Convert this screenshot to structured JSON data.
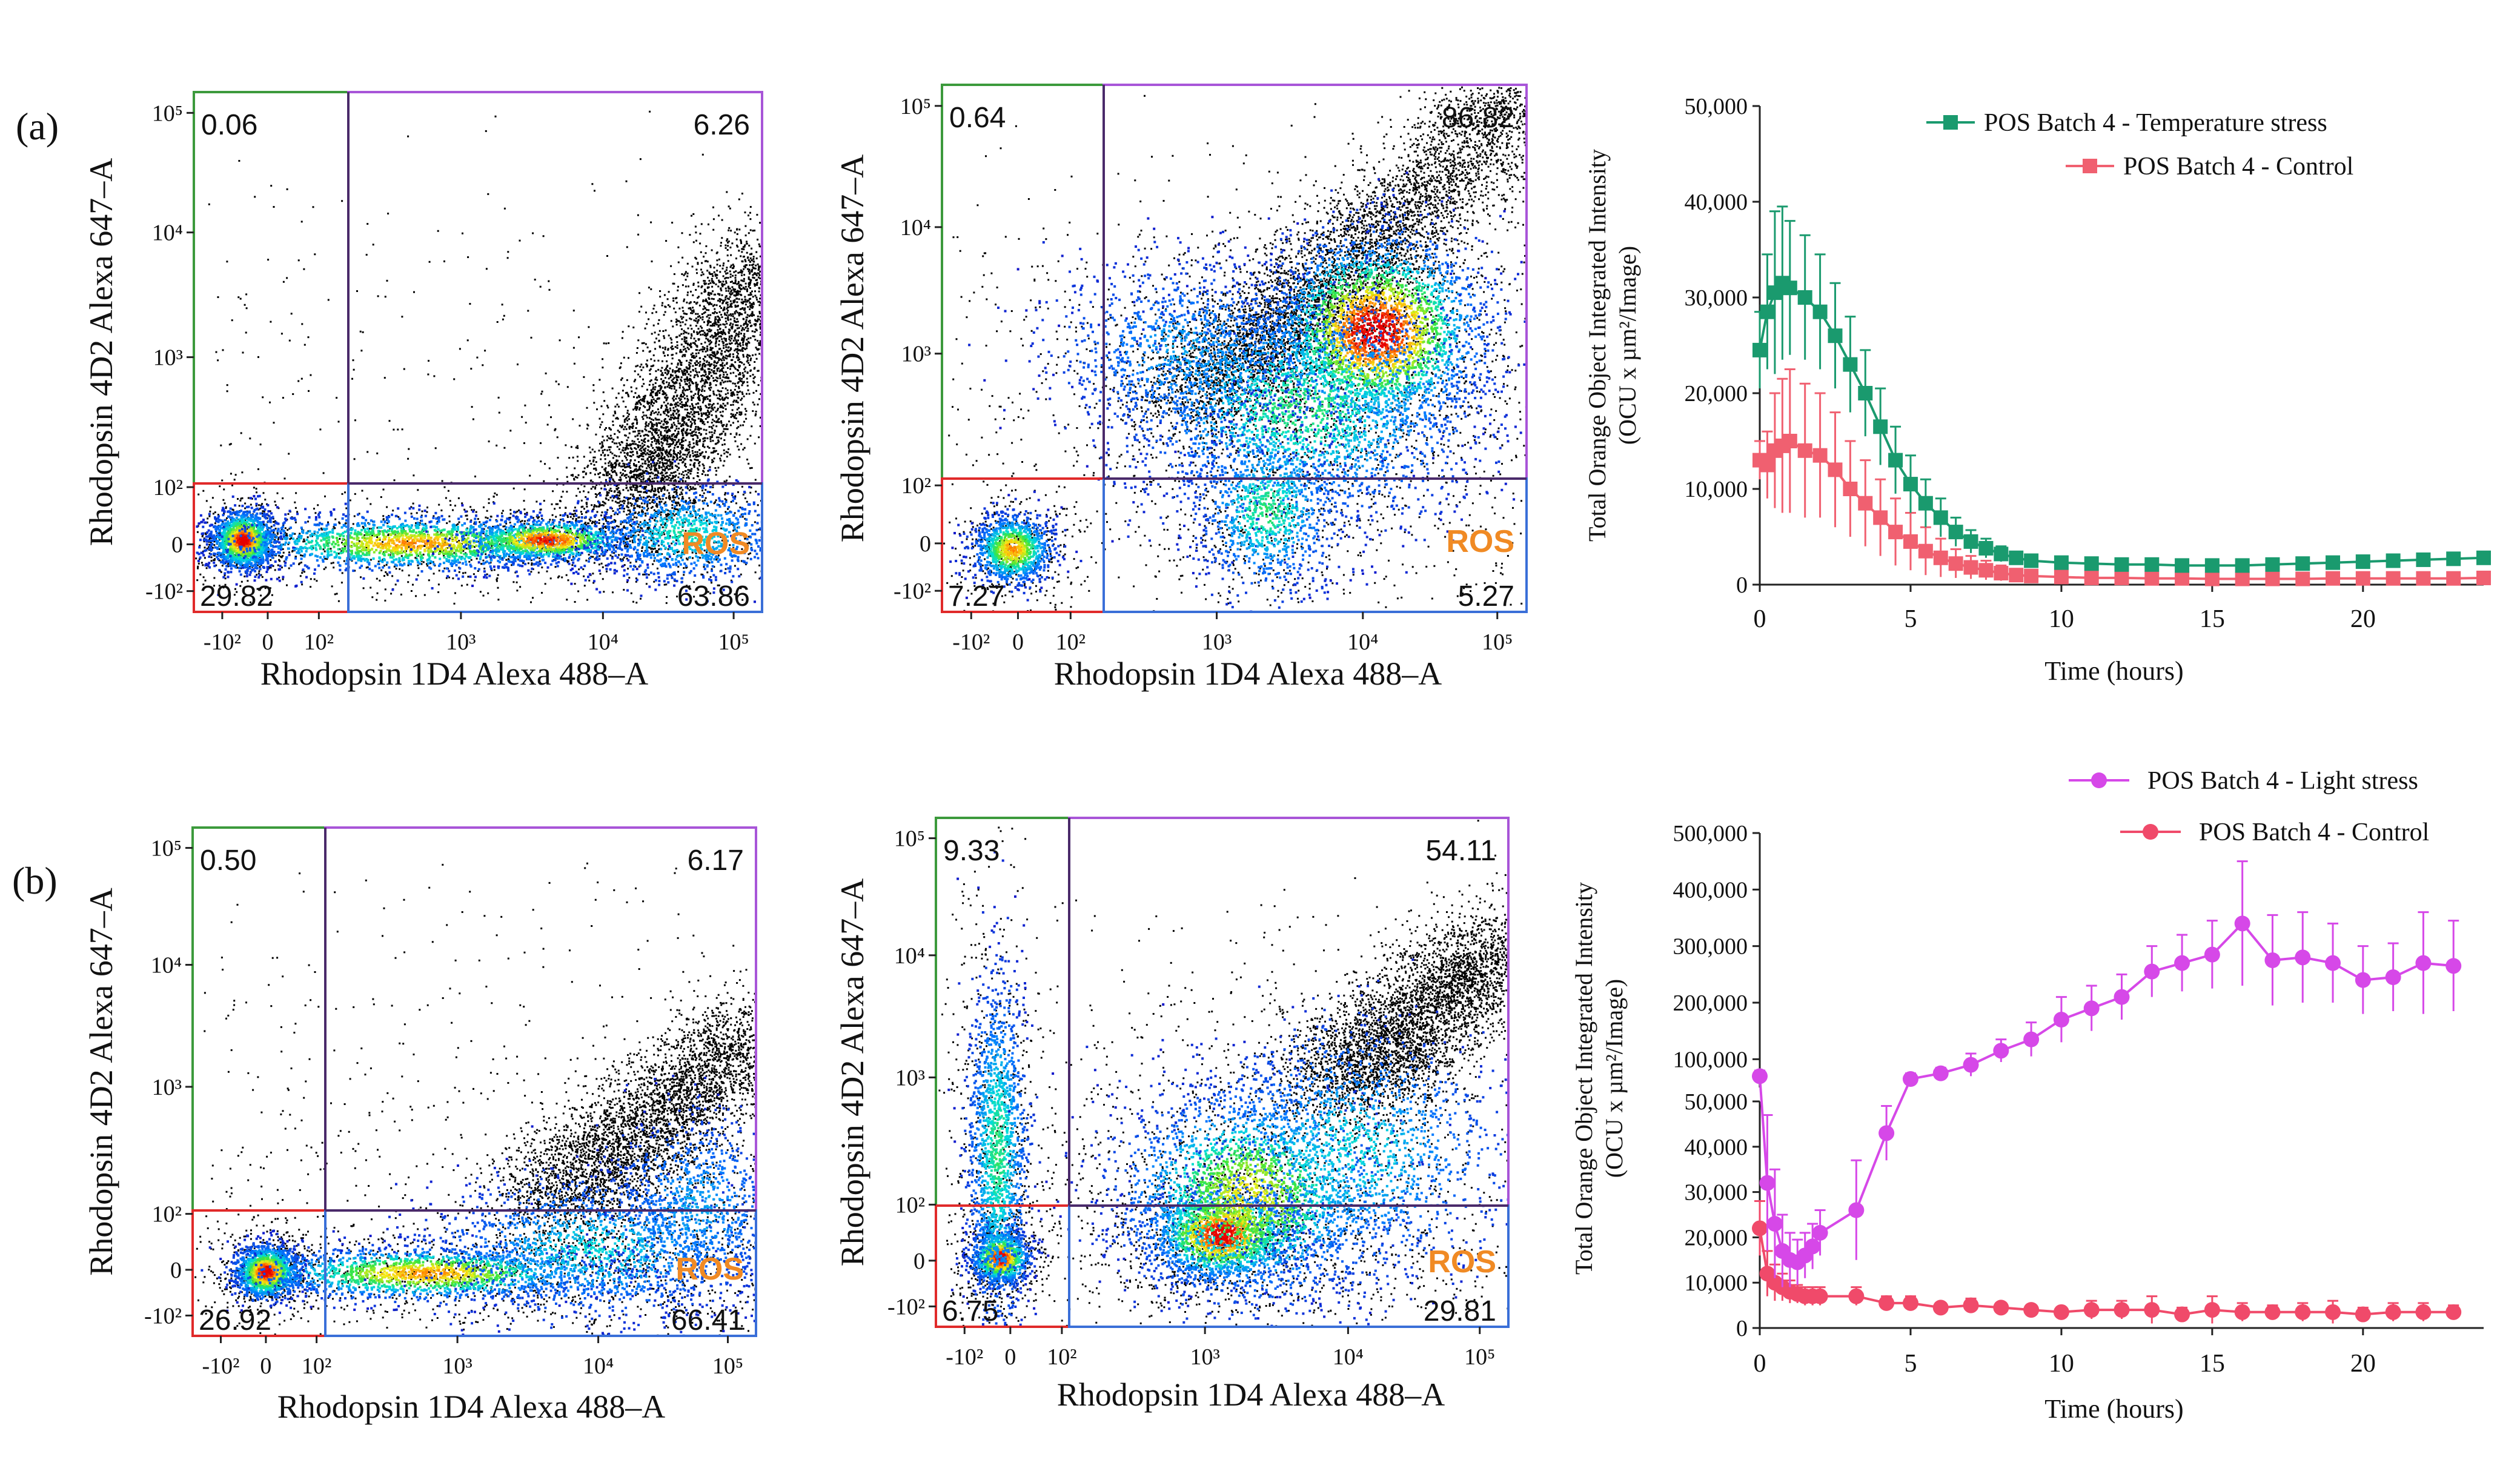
{
  "panels": [
    {
      "label": "(a)"
    },
    {
      "label": "(b)"
    }
  ],
  "colors": {
    "gate_q1": "#3c9a3c",
    "gate_q2": "#a855d8",
    "gate_q3": "#e02a2a",
    "gate_q4": "#3a6fd8",
    "ros": "#f08a24",
    "temperature": "#1a9a6e",
    "control_a": "#f06070",
    "light": "#d648e8",
    "control_b": "#f04a6a"
  },
  "chart_data": [
    {
      "type": "scatter",
      "id": "a-flow-1",
      "xlabel": "Rhodopsin 1D4 Alexa 488–A",
      "ylabel": "Rhodopsin 4D2 Alexa 647–A",
      "xticks": [
        "-10²",
        "0",
        "10²",
        "10³",
        "10⁴",
        "10⁵"
      ],
      "yticks": [
        "-10²",
        "0",
        "10²",
        "10³",
        "10⁴",
        "10⁵"
      ],
      "quadrants": {
        "q1": "0.06",
        "q2": "6.26",
        "q3": "29.82",
        "q4": "63.86"
      },
      "gate_label": "ROS"
    },
    {
      "type": "scatter",
      "id": "a-flow-2",
      "xlabel": "Rhodopsin 1D4 Alexa 488–A",
      "ylabel": "Rhodopsin 4D2 Alexa 647–A",
      "xticks": [
        "-10²",
        "0",
        "10²",
        "10³",
        "10⁴",
        "10⁵"
      ],
      "yticks": [
        "-10²",
        "0",
        "10²",
        "10³",
        "10⁴",
        "10⁵"
      ],
      "quadrants": {
        "q1": "0.64",
        "q2": "86.82",
        "q3": "7.27",
        "q4": "5.27"
      },
      "gate_label": "ROS"
    },
    {
      "type": "line",
      "id": "a-time",
      "xlabel": "Time (hours)",
      "ylabel_line1": "Total Orange Object Integrated Intensity",
      "ylabel_line2": "(OCU x µm²/Image)",
      "xlim": [
        0,
        24
      ],
      "xticks": [
        "0",
        "5",
        "10",
        "15",
        "20"
      ],
      "ylim": [
        0,
        50000
      ],
      "yticks": [
        "0",
        "10,000",
        "20,000",
        "30,000",
        "40,000",
        "50,000"
      ],
      "marker": "square",
      "series": [
        {
          "name": "POS Batch 4 - Temperature stress",
          "color": "#1a9a6e",
          "x": [
            0,
            0.25,
            0.5,
            0.75,
            1,
            1.5,
            2,
            2.5,
            3,
            3.5,
            4,
            4.5,
            5,
            5.5,
            6,
            6.5,
            7,
            7.5,
            8,
            8.5,
            9,
            10,
            11,
            12,
            13,
            14,
            15,
            16,
            17,
            18,
            19,
            20,
            21,
            22,
            23,
            24
          ],
          "y": [
            24500,
            28500,
            30500,
            31500,
            31000,
            30000,
            28500,
            26000,
            23000,
            20000,
            16500,
            13000,
            10500,
            8500,
            7000,
            5500,
            4500,
            3800,
            3200,
            2800,
            2500,
            2300,
            2200,
            2100,
            2100,
            2000,
            2000,
            2000,
            2100,
            2200,
            2300,
            2400,
            2500,
            2600,
            2700,
            2800
          ],
          "err": [
            4000,
            6000,
            8500,
            8000,
            7000,
            6500,
            6000,
            5500,
            5000,
            4500,
            4000,
            3500,
            3000,
            2500,
            2000,
            1500,
            1200,
            1000,
            800,
            600,
            500,
            400,
            400,
            400,
            400,
            400,
            400,
            400,
            400,
            400,
            400,
            400,
            400,
            400,
            400,
            400
          ]
        },
        {
          "name": "POS Batch 4 - Control",
          "color": "#f06070",
          "x": [
            0,
            0.25,
            0.5,
            0.75,
            1,
            1.5,
            2,
            2.5,
            3,
            3.5,
            4,
            4.5,
            5,
            5.5,
            6,
            6.5,
            7,
            7.5,
            8,
            8.5,
            9,
            10,
            11,
            12,
            13,
            14,
            15,
            16,
            17,
            18,
            19,
            20,
            21,
            22,
            23,
            24
          ],
          "y": [
            13000,
            12500,
            14000,
            14500,
            15000,
            14000,
            13500,
            12000,
            10000,
            8500,
            7000,
            5500,
            4500,
            3500,
            2800,
            2200,
            1800,
            1500,
            1200,
            1000,
            900,
            800,
            700,
            700,
            650,
            650,
            600,
            600,
            600,
            600,
            650,
            650,
            650,
            650,
            650,
            700
          ],
          "err": [
            2000,
            3500,
            6000,
            7000,
            7500,
            7000,
            6500,
            6000,
            5000,
            4500,
            4000,
            3500,
            3000,
            2500,
            2000,
            1500,
            1200,
            1000,
            800,
            600,
            500,
            400,
            300,
            300,
            300,
            300,
            300,
            300,
            300,
            300,
            300,
            300,
            300,
            300,
            300,
            300
          ]
        }
      ]
    },
    {
      "type": "scatter",
      "id": "b-flow-1",
      "xlabel": "Rhodopsin 1D4 Alexa 488–A",
      "ylabel": "Rhodopsin 4D2 Alexa 647–A",
      "xticks": [
        "-10²",
        "0",
        "10²",
        "10³",
        "10⁴",
        "10⁵"
      ],
      "yticks": [
        "-10²",
        "0",
        "10²",
        "10³",
        "10⁴",
        "10⁵"
      ],
      "quadrants": {
        "q1": "0.50",
        "q2": "6.17",
        "q3": "26.92",
        "q4": "66.41"
      },
      "gate_label": "ROS"
    },
    {
      "type": "scatter",
      "id": "b-flow-2",
      "xlabel": "Rhodopsin 1D4 Alexa 488–A",
      "ylabel": "Rhodopsin 4D2 Alexa 647–A",
      "xticks": [
        "-10²",
        "0",
        "10²",
        "10³",
        "10⁴",
        "10⁵"
      ],
      "yticks": [
        "-10²",
        "0",
        "10²",
        "10³",
        "10⁴",
        "10⁵"
      ],
      "quadrants": {
        "q1": "9.33",
        "q2": "54.11",
        "q3": "6.75",
        "q4": "29.81"
      },
      "gate_label": "ROS"
    },
    {
      "type": "line",
      "id": "b-time",
      "xlabel": "Time (hours)",
      "ylabel_line1": "Total Orange Object Integrated Intensity",
      "ylabel_line2": "(OCU x µm²/Image)",
      "xlim": [
        0,
        24
      ],
      "xticks": [
        "0",
        "5",
        "10",
        "15",
        "20"
      ],
      "yaxis": "broken",
      "ylim_lower": [
        0,
        50000
      ],
      "ylim_upper": [
        50000,
        500000
      ],
      "yticks_lower": [
        "0",
        "10,000",
        "20,000",
        "30,000",
        "40,000",
        "50,000"
      ],
      "yticks_upper": [
        "100,000",
        "200,000",
        "300,000",
        "400,000",
        "500,000"
      ],
      "marker": "circle",
      "series": [
        {
          "name": "POS Batch 4 - Light stress",
          "color": "#d648e8",
          "x": [
            0,
            0.25,
            0.5,
            0.75,
            1,
            1.25,
            1.5,
            1.75,
            2,
            3.2,
            4.2,
            5,
            6,
            7,
            8,
            9,
            10,
            11,
            12,
            13,
            14,
            15,
            16,
            17,
            18,
            19,
            20,
            21,
            22,
            23
          ],
          "y": [
            70000,
            32000,
            23000,
            17000,
            15000,
            14500,
            16000,
            18000,
            21000,
            26000,
            43000,
            65000,
            75000,
            90000,
            115000,
            135000,
            170000,
            190000,
            210000,
            255000,
            270000,
            285000,
            340000,
            275000,
            280000,
            270000,
            240000,
            245000,
            270000,
            265000
          ],
          "err": [
            10000,
            15000,
            12000,
            8000,
            6000,
            5000,
            5000,
            5000,
            5000,
            11000,
            6000,
            10000,
            10000,
            20000,
            20000,
            30000,
            40000,
            40000,
            40000,
            45000,
            50000,
            60000,
            110000,
            80000,
            80000,
            70000,
            60000,
            60000,
            90000,
            80000
          ]
        },
        {
          "name": "POS Batch 4 - Control",
          "color": "#f04a6a",
          "x": [
            0,
            0.25,
            0.5,
            0.75,
            1,
            1.25,
            1.5,
            1.75,
            2,
            3.2,
            4.2,
            5,
            6,
            7,
            8,
            9,
            10,
            11,
            12,
            13,
            14,
            15,
            16,
            17,
            18,
            19,
            20,
            21,
            22,
            23
          ],
          "y": [
            22000,
            12000,
            10000,
            9000,
            8000,
            7500,
            7000,
            7000,
            7000,
            7000,
            5500,
            5500,
            4500,
            5000,
            4500,
            4000,
            3500,
            4000,
            4000,
            4000,
            3000,
            4000,
            3500,
            3500,
            3500,
            3500,
            3000,
            3500,
            3500,
            3500
          ],
          "err": [
            6000,
            5000,
            4000,
            3000,
            2500,
            2000,
            2000,
            2000,
            2000,
            2000,
            1500,
            1500,
            1000,
            1500,
            1000,
            1000,
            1000,
            2000,
            2000,
            3000,
            1500,
            3000,
            2000,
            1500,
            2000,
            2500,
            1500,
            2000,
            2000,
            1500
          ]
        }
      ]
    }
  ]
}
